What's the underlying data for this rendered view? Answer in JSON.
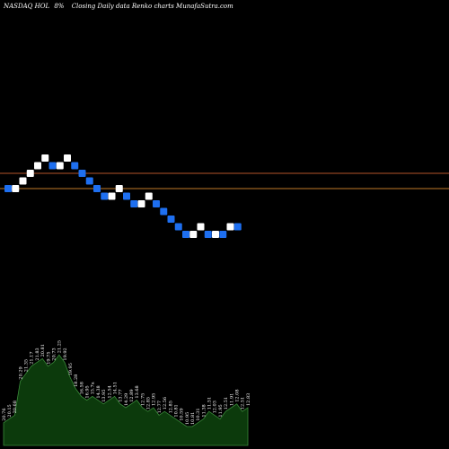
{
  "header": {
    "symbol": "NASDAQ HOL",
    "change": "8%",
    "title": "Closing Daily data Renko charts MunafaSutra.com"
  },
  "colors": {
    "background": "#000000",
    "brick_up": "#ffffff",
    "brick_down": "#1e6ff0",
    "ref_line_upper": "#b3542a",
    "ref_line_lower": "#c07a28",
    "volume_fill": "#0c3a0c",
    "volume_stroke": "#3a8a3a"
  },
  "chart_data": {
    "type": "renko",
    "reference_lines": [
      17,
      15
    ],
    "bricks": [
      {
        "dir": "down",
        "value": 15
      },
      {
        "dir": "up",
        "value": 15
      },
      {
        "dir": "up",
        "value": 16
      },
      {
        "dir": "up",
        "value": 17
      },
      {
        "dir": "up",
        "value": 18
      },
      {
        "dir": "up",
        "value": 19
      },
      {
        "dir": "down",
        "value": 18
      },
      {
        "dir": "up",
        "value": 18
      },
      {
        "dir": "up",
        "value": 19
      },
      {
        "dir": "down",
        "value": 18
      },
      {
        "dir": "down",
        "value": 17
      },
      {
        "dir": "down",
        "value": 16
      },
      {
        "dir": "down",
        "value": 15
      },
      {
        "dir": "down",
        "value": 14
      },
      {
        "dir": "up",
        "value": 14
      },
      {
        "dir": "up",
        "value": 15
      },
      {
        "dir": "down",
        "value": 14
      },
      {
        "dir": "down",
        "value": 13
      },
      {
        "dir": "up",
        "value": 13
      },
      {
        "dir": "up",
        "value": 14
      },
      {
        "dir": "down",
        "value": 13
      },
      {
        "dir": "down",
        "value": 12
      },
      {
        "dir": "down",
        "value": 11
      },
      {
        "dir": "down",
        "value": 10
      },
      {
        "dir": "down",
        "value": 9
      },
      {
        "dir": "up",
        "value": 9
      },
      {
        "dir": "up",
        "value": 10
      },
      {
        "dir": "down",
        "value": 9
      },
      {
        "dir": "up",
        "value": 9
      },
      {
        "dir": "down",
        "value": 9
      },
      {
        "dir": "up",
        "value": 10
      },
      {
        "dir": "down",
        "value": 10
      }
    ],
    "volume": [
      {
        "value": 6,
        "label": "20.76"
      },
      {
        "value": 7,
        "label": "20.15"
      },
      {
        "value": 8,
        "label": "20.68"
      },
      {
        "value": 17,
        "label": "20.29"
      },
      {
        "value": 19,
        "label": "21.35"
      },
      {
        "value": 21,
        "label": "21.17"
      },
      {
        "value": 22,
        "label": "21.83"
      },
      {
        "value": 23,
        "label": "20.81"
      },
      {
        "value": 21,
        "label": "19.75"
      },
      {
        "value": 22,
        "label": "20.73"
      },
      {
        "value": 24,
        "label": "21.25"
      },
      {
        "value": 22,
        "label": "19.92"
      },
      {
        "value": 18,
        "label": "19.95"
      },
      {
        "value": 15,
        "label": "18.28"
      },
      {
        "value": 13,
        "label": "16.58"
      },
      {
        "value": 12,
        "label": "16.95"
      },
      {
        "value": 13,
        "label": "15.7a"
      },
      {
        "value": 12,
        "label": "14.38"
      },
      {
        "value": 11,
        "label": "13.95"
      },
      {
        "value": 12,
        "label": "12.54"
      },
      {
        "value": 13,
        "label": "14.51"
      },
      {
        "value": 11,
        "label": "13.77"
      },
      {
        "value": 10,
        "label": "14.29"
      },
      {
        "value": 11,
        "label": "12.89"
      },
      {
        "value": 12,
        "label": "13.68"
      },
      {
        "value": 10,
        "label": "12.75"
      },
      {
        "value": 9,
        "label": "12.85"
      },
      {
        "value": 10,
        "label": "12.95"
      },
      {
        "value": 8,
        "label": "12.77"
      },
      {
        "value": 9,
        "label": "12.56"
      },
      {
        "value": 8,
        "label": "12.85"
      },
      {
        "value": 7,
        "label": "10.81"
      },
      {
        "value": 6,
        "label": "10.59"
      },
      {
        "value": 5,
        "label": "10.95"
      },
      {
        "value": 5,
        "label": "10.81"
      },
      {
        "value": 6,
        "label": "10.31"
      },
      {
        "value": 7,
        "label": "11.38"
      },
      {
        "value": 9,
        "label": "11.51"
      },
      {
        "value": 8,
        "label": "12.03"
      },
      {
        "value": 7,
        "label": "11.95"
      },
      {
        "value": 9,
        "label": "12.51"
      },
      {
        "value": 10,
        "label": "11.91"
      },
      {
        "value": 11,
        "label": "12.08"
      },
      {
        "value": 9,
        "label": "12.51"
      },
      {
        "value": 10,
        "label": "12.83"
      }
    ]
  }
}
